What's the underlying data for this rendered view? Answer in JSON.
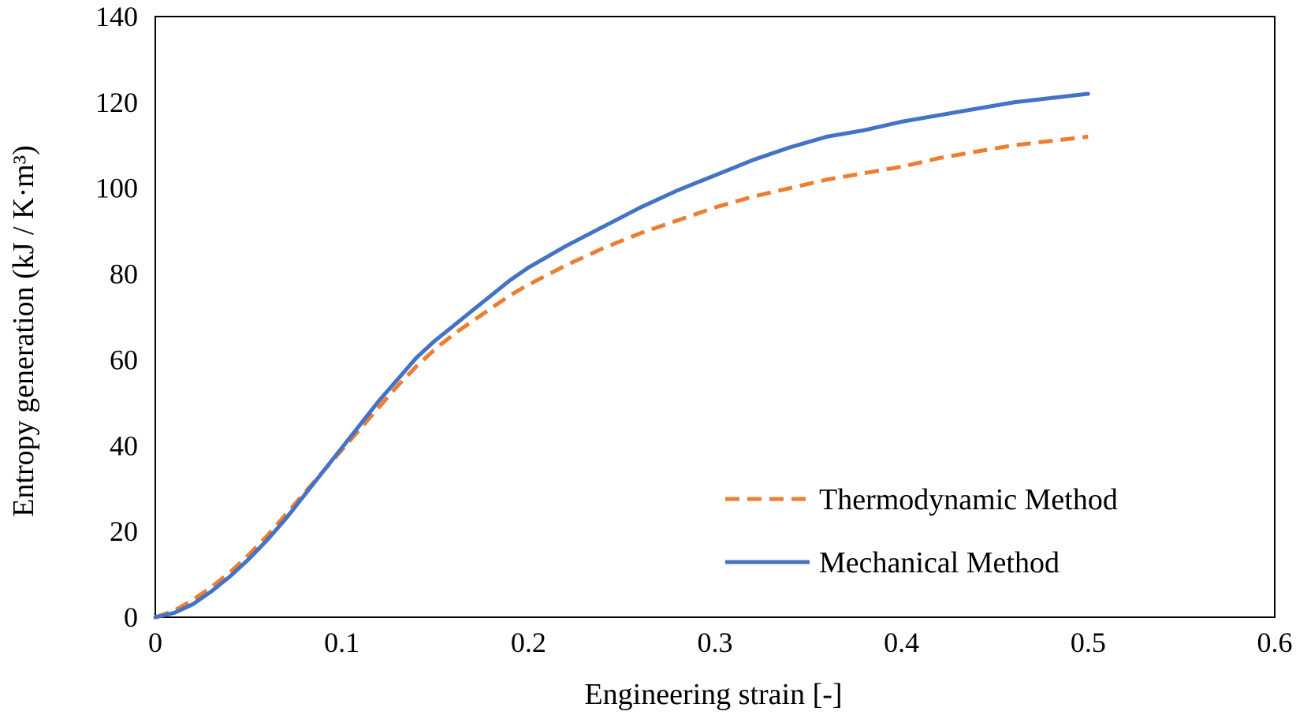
{
  "chart_data": {
    "type": "line",
    "title": "",
    "xlabel": "Engineering strain [-]",
    "ylabel": "Entropy generation (kJ / K·m³)",
    "xlim": [
      0,
      0.6
    ],
    "ylim": [
      0,
      140
    ],
    "x_ticks": [
      "0",
      "0.1",
      "0.2",
      "0.3",
      "0.4",
      "0.5",
      "0.6"
    ],
    "y_ticks": [
      "0",
      "20",
      "40",
      "60",
      "80",
      "100",
      "120",
      "140"
    ],
    "grid": false,
    "legend_position": "bottom-right",
    "series": [
      {
        "name": "Thermodynamic Method",
        "color": "#ED7D31",
        "style": "dashed",
        "points": [
          [
            0,
            0
          ],
          [
            0.01,
            1.5
          ],
          [
            0.02,
            4
          ],
          [
            0.03,
            7
          ],
          [
            0.04,
            10.5
          ],
          [
            0.05,
            14.5
          ],
          [
            0.06,
            19
          ],
          [
            0.07,
            24
          ],
          [
            0.08,
            29
          ],
          [
            0.09,
            34
          ],
          [
            0.1,
            39
          ],
          [
            0.11,
            44
          ],
          [
            0.12,
            49
          ],
          [
            0.13,
            54
          ],
          [
            0.14,
            58.5
          ],
          [
            0.15,
            62.5
          ],
          [
            0.16,
            66
          ],
          [
            0.17,
            69
          ],
          [
            0.18,
            72
          ],
          [
            0.19,
            75
          ],
          [
            0.2,
            77.5
          ],
          [
            0.22,
            82
          ],
          [
            0.24,
            86
          ],
          [
            0.26,
            89.5
          ],
          [
            0.28,
            92.5
          ],
          [
            0.3,
            95.5
          ],
          [
            0.32,
            98
          ],
          [
            0.34,
            100
          ],
          [
            0.36,
            102
          ],
          [
            0.38,
            103.5
          ],
          [
            0.4,
            105
          ],
          [
            0.42,
            107
          ],
          [
            0.44,
            108.5
          ],
          [
            0.46,
            110
          ],
          [
            0.48,
            111
          ],
          [
            0.5,
            112
          ]
        ]
      },
      {
        "name": "Mechanical Method",
        "color": "#4472C4",
        "style": "solid",
        "points": [
          [
            0,
            0
          ],
          [
            0.01,
            1
          ],
          [
            0.02,
            3
          ],
          [
            0.03,
            6
          ],
          [
            0.04,
            9.5
          ],
          [
            0.05,
            13.5
          ],
          [
            0.06,
            18
          ],
          [
            0.07,
            23
          ],
          [
            0.08,
            28.5
          ],
          [
            0.09,
            34
          ],
          [
            0.1,
            39.5
          ],
          [
            0.11,
            45
          ],
          [
            0.12,
            50.5
          ],
          [
            0.13,
            55.5
          ],
          [
            0.14,
            60.5
          ],
          [
            0.15,
            64.5
          ],
          [
            0.16,
            68
          ],
          [
            0.17,
            71.5
          ],
          [
            0.18,
            75
          ],
          [
            0.19,
            78.5
          ],
          [
            0.2,
            81.5
          ],
          [
            0.22,
            86.5
          ],
          [
            0.24,
            91
          ],
          [
            0.26,
            95.5
          ],
          [
            0.28,
            99.5
          ],
          [
            0.3,
            103
          ],
          [
            0.32,
            106.5
          ],
          [
            0.34,
            109.5
          ],
          [
            0.36,
            112
          ],
          [
            0.38,
            113.5
          ],
          [
            0.4,
            115.5
          ],
          [
            0.42,
            117
          ],
          [
            0.44,
            118.5
          ],
          [
            0.46,
            120
          ],
          [
            0.48,
            121
          ],
          [
            0.5,
            122
          ]
        ]
      }
    ]
  }
}
